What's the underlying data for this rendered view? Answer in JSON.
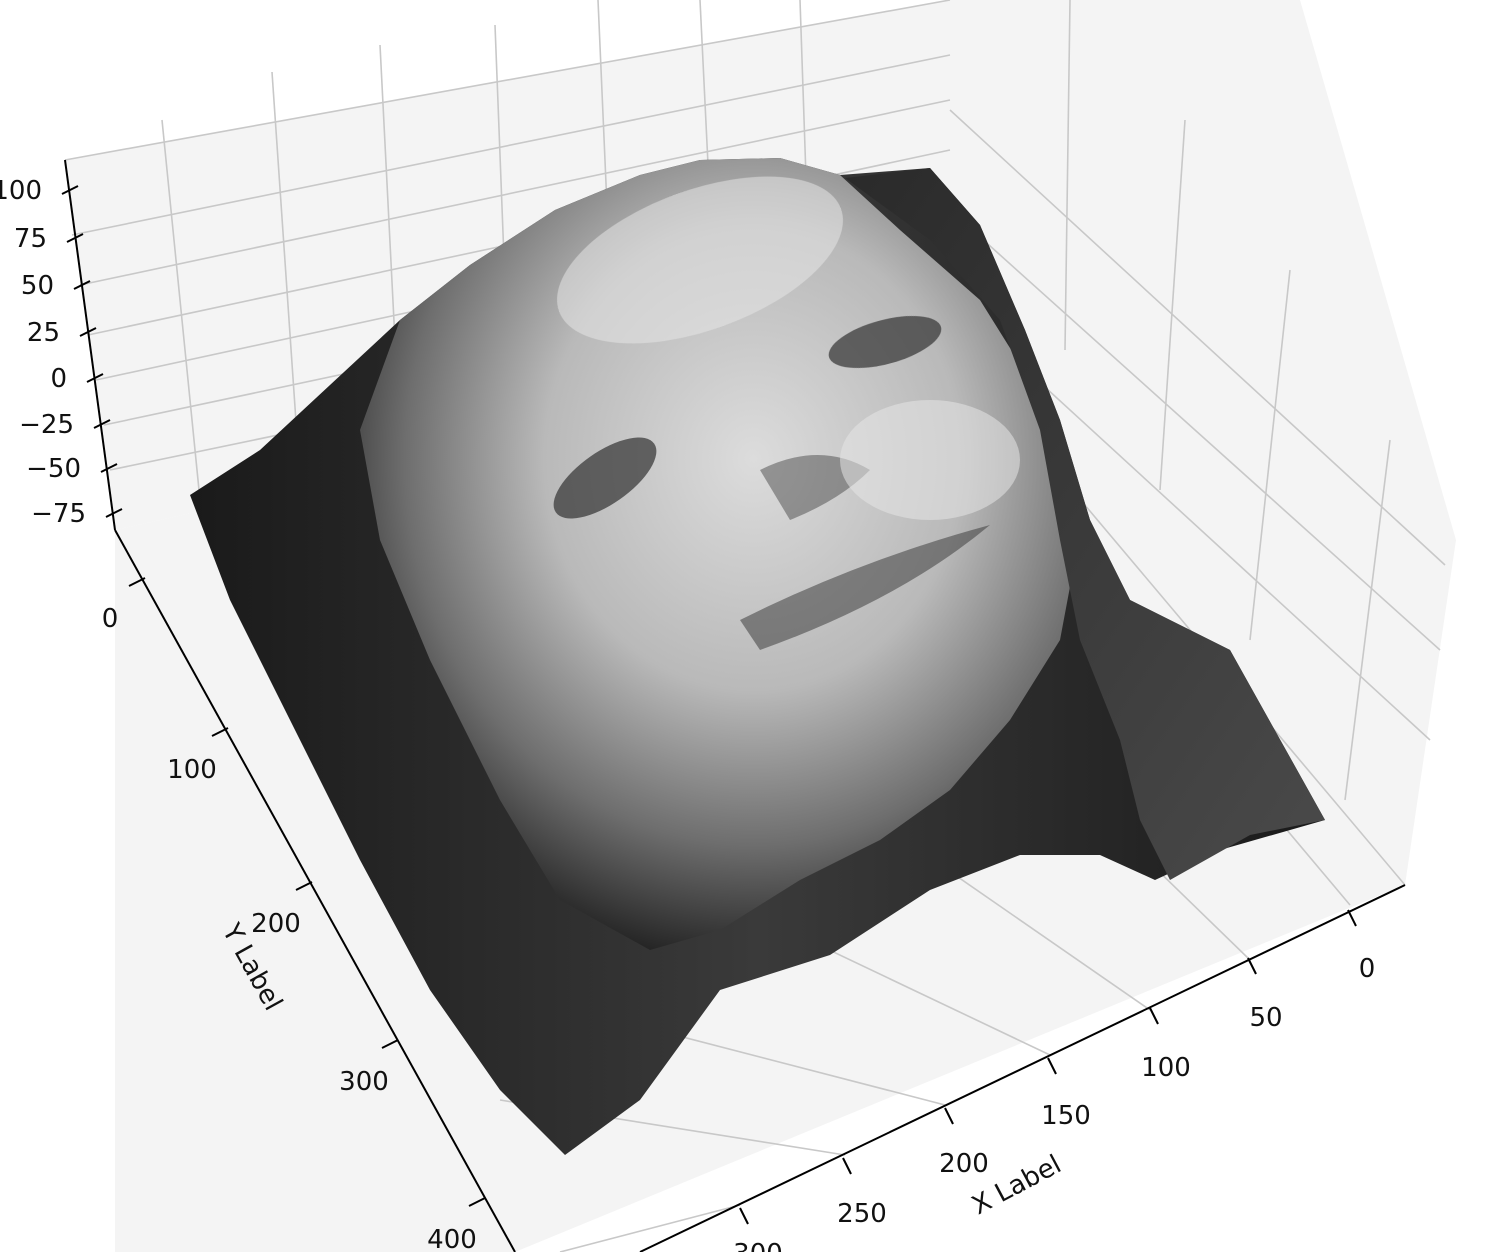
{
  "chart_data": {
    "type": "surface3d",
    "title": "",
    "xlabel": "X Label",
    "ylabel": "Y Label",
    "zlabel": "",
    "colormap": "gray",
    "surface_description": "Height-map surface of a face image, shaded in grayscale",
    "x_ticks": [
      "0",
      "50",
      "100",
      "150",
      "200",
      "250",
      "300"
    ],
    "y_ticks": [
      "0",
      "100",
      "200",
      "300",
      "400"
    ],
    "z_ticks": [
      "100",
      "75",
      "50",
      "25",
      "0",
      "−25",
      "−50",
      "−75"
    ],
    "grid": true,
    "pane_color": "#f4f4f4",
    "grid_color": "#c8c8c8"
  }
}
